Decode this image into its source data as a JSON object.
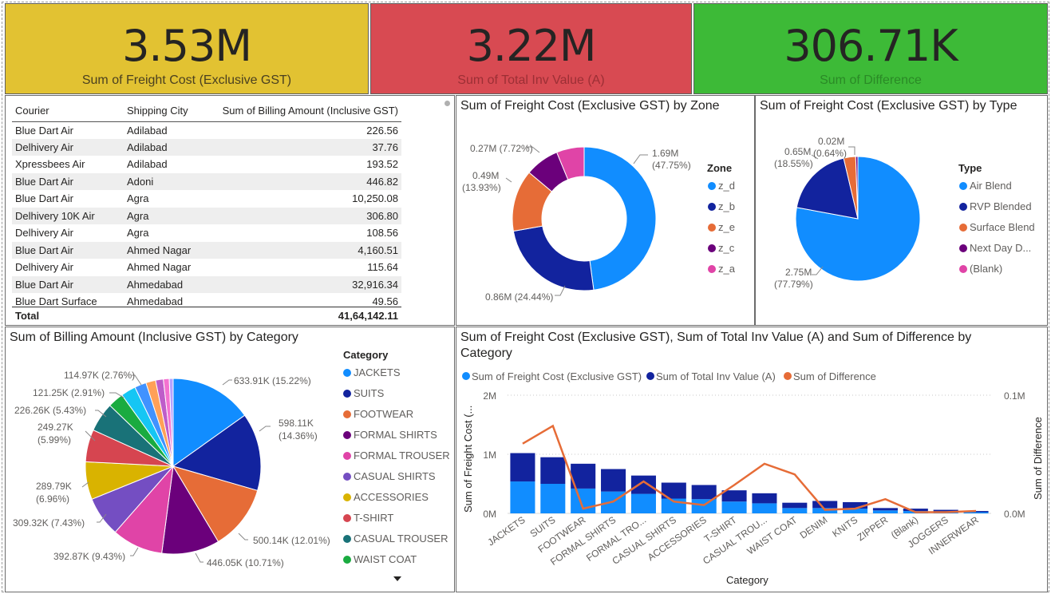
{
  "kpis": [
    {
      "value": "3.53M",
      "label": "Sum of Freight Cost (Exclusive GST)",
      "color": "#E2C232"
    },
    {
      "value": "3.22M",
      "label": "Sum of Total Inv Value (A)",
      "color": "#D84A52"
    },
    {
      "value": "306.71K",
      "label": "Sum of Difference",
      "color": "#3DBA37"
    }
  ],
  "table": {
    "headers": [
      "Courier",
      "Shipping City",
      "Sum of Billing Amount (Inclusive GST)"
    ],
    "rows": [
      [
        "Blue Dart Air",
        "Adilabad",
        "226.56"
      ],
      [
        "Delhivery Air",
        "Adilabad",
        "37.76"
      ],
      [
        "Xpressbees Air",
        "Adilabad",
        "193.52"
      ],
      [
        "Blue Dart Air",
        "Adoni",
        "446.82"
      ],
      [
        "Blue Dart Air",
        "Agra",
        "10,250.08"
      ],
      [
        "Delhivery 10K Air",
        "Agra",
        "306.80"
      ],
      [
        "Delhivery Air",
        "Agra",
        "108.56"
      ],
      [
        "Blue Dart Air",
        "Ahmed Nagar",
        "4,160.51"
      ],
      [
        "Delhivery Air",
        "Ahmed Nagar",
        "115.64"
      ],
      [
        "Blue Dart Air",
        "Ahmedabad",
        "32,916.34"
      ],
      [
        "Blue Dart Surface",
        "Ahmedabad",
        "49.56"
      ]
    ],
    "total_label": "Total",
    "total_value": "41,64,142.11"
  },
  "zone_chart": {
    "title": "Sum of Freight Cost (Exclusive GST) by Zone",
    "legend_title": "Zone",
    "legend": [
      "z_d",
      "z_b",
      "z_e",
      "z_c",
      "z_a"
    ],
    "labels": [
      "1.69M",
      "(47.75%)",
      "0.86M (24.44%)",
      "0.49M",
      "(13.93%)",
      "0.27M (7.72%)"
    ]
  },
  "type_chart": {
    "title": "Sum of Freight Cost (Exclusive GST) by Type",
    "legend_title": "Type",
    "legend": [
      "Air Blend",
      "RVP Blended",
      "Surface Blend",
      "Next Day D...",
      "(Blank)"
    ],
    "labels": [
      "2.75M",
      "(77.79%)",
      "0.65M",
      "(18.55%)",
      "0.02M",
      "(0.64%)"
    ]
  },
  "category_pie": {
    "title": "Sum of Billing Amount (Inclusive GST) by Category",
    "legend_title": "Category",
    "legend": [
      "JACKETS",
      "SUITS",
      "FOOTWEAR",
      "FORMAL SHIRTS",
      "FORMAL TROUSER",
      "CASUAL SHIRTS",
      "ACCESSORIES",
      "T-SHIRT",
      "CASUAL TROUSER",
      "WAIST COAT"
    ],
    "labels": [
      "633.91K (15.22%)",
      "598.11K",
      "(14.36%)",
      "500.14K (12.01%)",
      "446.05K (10.71%)",
      "392.87K (9.43%)",
      "309.32K (7.43%)",
      "289.79K",
      "(6.96%)",
      "249.27K",
      "(5.99%)",
      "226.26K (5.43%)",
      "121.25K (2.91%)",
      "114.97K (2.76%)"
    ]
  },
  "combo_chart": {
    "title_line1": "Sum of Freight Cost (Exclusive GST), Sum of Total Inv Value (A) and Sum of Difference by",
    "title_line2": "Category",
    "legend": [
      "Sum of Freight Cost (Exclusive GST)",
      "Sum of Total Inv Value (A)",
      "Sum of Difference"
    ],
    "y_left_label": "Sum of Freight Cost (...",
    "y_right_label": "Sum of Difference",
    "x_label": "Category",
    "y_left_ticks": [
      "2M",
      "1M",
      "0M"
    ],
    "y_right_ticks": [
      "0.1M",
      "0.0M"
    ]
  },
  "chart_data": [
    {
      "type": "pie",
      "title": "Sum of Freight Cost (Exclusive GST) by Zone",
      "categories": [
        "z_d",
        "z_b",
        "z_e",
        "z_c",
        "z_a"
      ],
      "values": [
        1.69,
        0.86,
        0.49,
        0.27,
        0.22
      ],
      "percent": [
        47.75,
        24.44,
        13.93,
        7.72,
        6.16
      ],
      "colors": [
        "#118DFF",
        "#12239E",
        "#E66C37",
        "#6B007B",
        "#E044A7"
      ]
    },
    {
      "type": "pie",
      "title": "Sum of Freight Cost (Exclusive GST) by Type",
      "categories": [
        "Air Blend",
        "RVP Blended",
        "Surface Blend",
        "Next Day D...",
        "(Blank)"
      ],
      "values": [
        2.75,
        0.65,
        0.11,
        0.02,
        0.0
      ],
      "percent": [
        77.79,
        18.55,
        3.02,
        0.64,
        0.0
      ],
      "colors": [
        "#118DFF",
        "#12239E",
        "#E66C37",
        "#6B007B",
        "#E044A7"
      ]
    },
    {
      "type": "pie",
      "title": "Sum of Billing Amount (Inclusive GST) by Category",
      "categories": [
        "JACKETS",
        "SUITS",
        "FOOTWEAR",
        "FORMAL SHIRTS",
        "FORMAL TROUSER",
        "CASUAL SHIRTS",
        "ACCESSORIES",
        "T-SHIRT",
        "CASUAL TROUSER",
        "WAIST COAT",
        "DENIM",
        "KNITS",
        "ZIPPER",
        "(Blank)",
        "JOGGERS",
        "INNERWEAR"
      ],
      "values": [
        633.91,
        598.11,
        500.14,
        446.05,
        392.87,
        309.32,
        289.79,
        249.27,
        226.26,
        121.25,
        114.97,
        90,
        75,
        60,
        45,
        30
      ],
      "colors": [
        "#118DFF",
        "#12239E",
        "#E66C37",
        "#6B007B",
        "#E044A7",
        "#744EC2",
        "#D9B300",
        "#D64550",
        "#197278",
        "#1AAB40",
        "#15C6F4",
        "#4092FF",
        "#FFA058",
        "#BE5DC9",
        "#F472D0",
        "#B5A1FF"
      ]
    },
    {
      "type": "bar",
      "title": "Sum of Freight Cost (Exclusive GST), Sum of Total Inv Value (A) and Sum of Difference by Category",
      "categories": [
        "JACKETS",
        "SUITS",
        "FOOTWEAR",
        "FORMAL SHIRTS",
        "FORMAL TRO...",
        "CASUAL SHIRTS",
        "ACCESSORIES",
        "T-SHIRT",
        "CASUAL TROU...",
        "WAIST COAT",
        "DENIM",
        "KNITS",
        "ZIPPER",
        "(Blank)",
        "JOGGERS",
        "INNERWEAR"
      ],
      "series": [
        {
          "name": "Sum of Freight Cost (Exclusive GST)",
          "values": [
            0.54,
            0.5,
            0.42,
            0.37,
            0.33,
            0.25,
            0.24,
            0.2,
            0.17,
            0.09,
            0.09,
            0.08,
            0.05,
            0.04,
            0.03,
            0.02
          ],
          "color": "#118DFF"
        },
        {
          "name": "Sum of Total Inv Value (A)",
          "values": [
            0.48,
            0.45,
            0.42,
            0.38,
            0.31,
            0.27,
            0.24,
            0.19,
            0.17,
            0.09,
            0.12,
            0.11,
            0.04,
            0.04,
            0.03,
            0.02
          ],
          "color": "#12239E"
        },
        {
          "name": "Sum of Difference",
          "values": [
            0.059,
            0.074,
            0.004,
            0.01,
            0.027,
            0.01,
            0.007,
            0.024,
            0.042,
            0.033,
            0.003,
            0.004,
            0.012,
            0.001,
            0.001,
            0.002
          ],
          "color": "#E66C37"
        }
      ],
      "ylim": [
        0,
        2
      ],
      "y2lim": [
        0,
        0.1
      ],
      "xlabel": "Category",
      "ylabel": "Sum of Freight Cost (...",
      "y2label": "Sum of Difference"
    }
  ]
}
